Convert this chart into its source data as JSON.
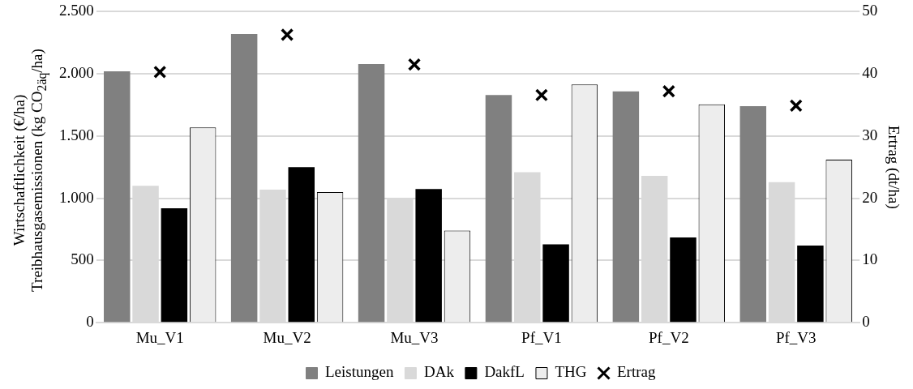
{
  "chart_data": {
    "type": "bar",
    "ylabel": "Wirtschaftlichkeit (€/ha)\nTreibhausgasemissionen (kg CO$_{2äq}$/ha)",
    "y2label": "Ertrag (dt/ha)",
    "categories": [
      "Mu_V1",
      "Mu_V2",
      "Mu_V3",
      "Pf_V1",
      "Pf_V2",
      "Pf_V3"
    ],
    "series": [
      {
        "name": "Leistungen",
        "color": "#808080",
        "values": [
          2020,
          2320,
          2080,
          1830,
          1860,
          1740
        ]
      },
      {
        "name": "DAk",
        "color": "#d9d9d9",
        "values": [
          1100,
          1070,
          1000,
          1210,
          1180,
          1130
        ]
      },
      {
        "name": "DakfL",
        "color": "#000000",
        "values": [
          920,
          1250,
          1075,
          630,
          685,
          620
        ]
      },
      {
        "name": "THG",
        "color": "#ededed",
        "values": [
          1570,
          1050,
          740,
          1915,
          1755,
          1310
        ]
      },
      {
        "name": "Ertrag",
        "type": "scatter",
        "axis": "y2",
        "marker": "cross",
        "color": "#000000",
        "values": [
          40.3,
          46.3,
          41.5,
          36.6,
          37.2,
          34.9
        ]
      }
    ],
    "ylim": [
      0,
      2500
    ],
    "yticks": [
      0,
      500,
      {
        "value": 1000,
        "label": "1.000"
      },
      {
        "value": 1500,
        "label": "1.500"
      },
      {
        "value": 2000,
        "label": "2.000"
      },
      {
        "value": 2500,
        "label": "2.500"
      }
    ],
    "y2lim": [
      0,
      50
    ],
    "y2ticks": [
      0,
      10,
      20,
      30,
      40,
      50
    ],
    "grid": "y",
    "legend": "bottom"
  }
}
